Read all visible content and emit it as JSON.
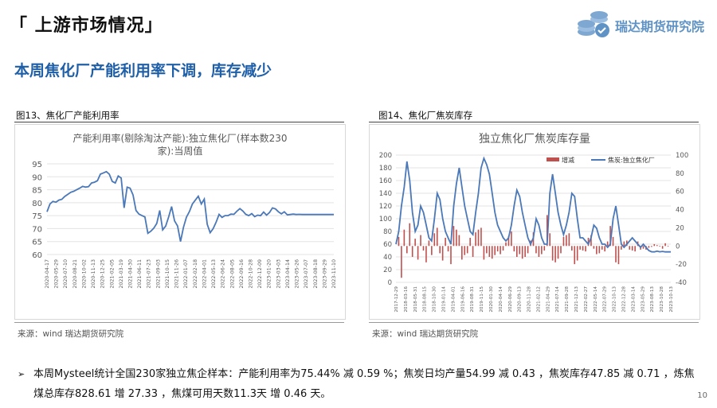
{
  "header": {
    "section_title": "「 上游市场情况」"
  },
  "brand": {
    "name": "瑞达期货研究院",
    "color": "#5f93c6"
  },
  "headline": "本周焦化厂产能利用率下调，库存减少",
  "colors": {
    "line": "#4a78b8",
    "bar": "#c0504d",
    "grid": "#e3e3e3",
    "headline": "#1f5fa8"
  },
  "figures": {
    "left": {
      "caption": "图13、焦化厂产能利用率",
      "source": "来源：wind   瑞达期货研究院"
    },
    "right": {
      "caption": "图14、焦化厂焦炭库存",
      "source": "来源：wind   瑞达期货研究院"
    }
  },
  "chart_data": [
    {
      "type": "line",
      "title_line1": "产能利用率(剔除淘汰产能):独立焦化厂(样本数230",
      "title_line2": "家):当周值",
      "ylim": [
        60,
        95
      ],
      "yticks": [
        60,
        65,
        70,
        75,
        80,
        85,
        90,
        95
      ],
      "xlim": [
        0,
        58
      ],
      "xtick_labels": [
        "2020-04-17",
        "2020-05-29",
        "2020-07-10",
        "2020-08-21",
        "2020-10-02",
        "2020-11-13",
        "2020-12-25",
        "2021-02-05",
        "2021-03-19",
        "2021-04-30",
        "2021-06-11",
        "2021-07-23",
        "2021-09-03",
        "2021-10-15",
        "2021-11-26",
        "2022-01-07",
        "2022-02-18",
        "2022-04-01",
        "2022-05-13",
        "2022-06-24",
        "2022-08-05",
        "2022-09-16",
        "2022-10-28",
        "2022-12-09",
        "2023-01-20",
        "2023-03-03",
        "2023-04-14",
        "2023-05-26",
        "2023-07-07",
        "2023-08-18",
        "2023-09-29",
        "2023-11-10"
      ],
      "series": [
        {
          "name": "独立焦化厂产能利用率",
          "x": [
            0,
            0.6,
            1.2,
            1.8,
            2.4,
            3.0,
            3.6,
            4.2,
            4.8,
            5.4,
            6.0,
            6.6,
            7.2,
            7.8,
            8.4,
            9.0,
            9.6,
            10.2,
            10.8,
            11.4,
            12.0,
            12.6,
            13.2,
            13.8,
            14.4,
            15.0,
            15.6,
            16.2,
            16.8,
            17.4,
            18.0,
            18.6,
            19.2,
            19.8,
            20.4,
            21.0,
            21.6,
            22.2,
            22.8,
            23.4,
            24.0,
            24.6,
            25.2,
            25.8,
            26.4,
            27.0,
            27.6,
            28.2,
            28.8,
            29.4,
            30.0,
            30.6,
            31.2,
            31.8,
            32.4,
            33.0,
            33.6,
            34.2,
            34.8,
            35.4,
            36.0,
            36.6,
            37.2,
            37.8,
            38.4,
            39.0,
            39.6,
            40.2,
            40.8,
            41.4,
            42.0,
            42.6,
            43.2,
            43.8,
            44.4,
            45.0,
            45.6,
            46.2,
            46.8,
            47.4,
            48.0,
            48.6,
            49.2,
            49.8,
            50.4,
            51.0,
            51.6,
            52.2,
            52.8,
            53.4,
            54.0,
            54.6,
            55.2,
            55.8,
            56.4,
            57.0,
            57.6,
            58.0
          ],
          "values": [
            76.5,
            79.5,
            80.5,
            80.2,
            81.0,
            81.3,
            82.4,
            83.2,
            84.0,
            84.4,
            85.0,
            85.6,
            86.3,
            86.0,
            86.2,
            87.6,
            87.9,
            88.5,
            91.0,
            91.5,
            92.0,
            91.0,
            88.2,
            87.6,
            90.3,
            89.5,
            78.0,
            86.0,
            85.6,
            83.0,
            77.0,
            75.6,
            75.0,
            74.5,
            68.2,
            69.0,
            70.2,
            72.0,
            77.0,
            69.5,
            71.0,
            74.5,
            78.5,
            73.0,
            71.0,
            65.0,
            70.5,
            74.4,
            76.6,
            79.5,
            81.0,
            82.5,
            79.5,
            81.4,
            71.7,
            68.4,
            70.0,
            72.5,
            75.5,
            74.3,
            75.0,
            75.0,
            75.6,
            75.5,
            76.7,
            77.7,
            76.8,
            75.5,
            75.0,
            75.8,
            74.6,
            75.2,
            75.0,
            76.4,
            75.2,
            76.2,
            78.0,
            77.6,
            76.5,
            75.7,
            76.5,
            75.3,
            75.44,
            75.6,
            75.44,
            75.5,
            75.44,
            75.44,
            75.44,
            75.44,
            75.44,
            75.44,
            75.44,
            75.44,
            75.44,
            75.44,
            75.44,
            75.44
          ]
        }
      ]
    },
    {
      "type": "bar+line",
      "title": "独立焦化厂焦炭库存量",
      "legend": [
        "增减",
        "焦炭:独立焦化厂"
      ],
      "left_ylim": [
        0,
        200
      ],
      "left_yticks": [
        0,
        20,
        40,
        60,
        80,
        100,
        120,
        140,
        160,
        180,
        200
      ],
      "right_ylim": [
        -40,
        100
      ],
      "right_yticks": [
        -40,
        -20,
        0,
        20,
        40,
        60,
        80,
        100
      ],
      "xlim": [
        0,
        100
      ],
      "xtick_labels": [
        "2017-12-29",
        "2018-03-16",
        "2018-05-31",
        "2018-08-15",
        "2018-10-30",
        "2019-01-14",
        "2019-04-01",
        "2019-06-16",
        "2019-08-31",
        "2019-11-15",
        "2020-01-30",
        "2020-04-14",
        "2020-06-29",
        "2020-09-13",
        "2020-11-28",
        "2021-02-12",
        "2021-04-29",
        "2021-07-14",
        "2021-09-28",
        "2021-12-13",
        "2022-02-27",
        "2022-05-14",
        "2022-07-29",
        "2022-10-13",
        "2022-12-28",
        "2023-03-14",
        "2023-05-29",
        "2023-08-13",
        "2023-10-28",
        "2023-10-13"
      ],
      "series": [
        {
          "name": "焦炭:独立焦化厂",
          "axis": "left",
          "x": [
            0,
            1,
            2,
            3,
            4,
            5,
            6,
            7,
            8,
            9,
            10,
            11,
            12,
            13,
            14,
            15,
            16,
            17,
            18,
            19,
            20,
            21,
            22,
            23,
            24,
            25,
            26,
            27,
            28,
            29,
            30,
            31,
            32,
            33,
            34,
            35,
            36,
            37,
            38,
            39,
            40,
            41,
            42,
            43,
            44,
            45,
            46,
            47,
            48,
            49,
            50,
            51,
            52,
            53,
            54,
            55,
            56,
            57,
            58,
            59,
            60,
            61,
            62,
            63,
            64,
            65,
            66,
            67,
            68,
            69,
            70,
            71,
            72,
            73,
            74,
            75,
            76,
            77,
            78,
            79,
            80,
            81,
            82,
            83,
            84,
            85,
            86,
            87,
            88,
            89,
            90,
            91,
            92,
            93,
            94,
            95,
            96,
            97,
            98,
            99,
            100
          ],
          "values": [
            60,
            80,
            120,
            150,
            190,
            160,
            110,
            80,
            90,
            120,
            110,
            90,
            70,
            65,
            100,
            140,
            130,
            100,
            80,
            70,
            60,
            120,
            155,
            180,
            150,
            120,
            100,
            80,
            75,
            110,
            140,
            180,
            195,
            185,
            170,
            140,
            110,
            90,
            80,
            70,
            65,
            70,
            90,
            120,
            145,
            135,
            110,
            90,
            70,
            60,
            70,
            100,
            90,
            70,
            60,
            60,
            140,
            170,
            140,
            110,
            90,
            75,
            90,
            110,
            140,
            135,
            100,
            70,
            70,
            65,
            60,
            70,
            90,
            85,
            70,
            60,
            60,
            55,
            60,
            100,
            120,
            90,
            60,
            55,
            60,
            65,
            70,
            65,
            60,
            55,
            60,
            55,
            50,
            48,
            47.85,
            49,
            48,
            48.6,
            47.85,
            47.85,
            47.85
          ]
        },
        {
          "name": "增减",
          "axis": "right",
          "x": [
            1,
            2,
            3,
            4,
            5,
            6,
            7,
            8,
            9,
            10,
            11,
            12,
            13,
            14,
            15,
            16,
            17,
            18,
            19,
            20,
            21,
            22,
            23,
            24,
            25,
            26,
            27,
            28,
            29,
            30,
            31,
            32,
            33,
            34,
            35,
            36,
            37,
            38,
            39,
            40,
            41,
            42,
            43,
            44,
            45,
            46,
            47,
            48,
            49,
            50,
            51,
            52,
            53,
            54,
            55,
            56,
            57,
            58,
            59,
            60,
            61,
            62,
            63,
            64,
            65,
            66,
            67,
            68,
            69,
            70,
            71,
            72,
            73,
            74,
            75,
            76,
            77,
            78,
            79,
            80,
            81,
            82,
            83,
            84,
            85,
            86,
            87,
            88,
            89,
            90,
            91,
            92,
            93,
            94,
            95,
            96,
            97,
            98,
            99
          ],
          "values": [
            10,
            -35,
            18,
            -8,
            25,
            -12,
            8,
            -15,
            12,
            -5,
            -18,
            6,
            -10,
            14,
            20,
            -8,
            -16,
            9,
            -6,
            -20,
            22,
            18,
            12,
            -15,
            -10,
            -8,
            9,
            -12,
            15,
            18,
            20,
            -15,
            -8,
            -12,
            -14,
            -10,
            -6,
            -9,
            -5,
            4,
            11,
            16,
            -6,
            -12,
            -9,
            -14,
            -12,
            -8,
            6,
            15,
            -8,
            -12,
            -9,
            -5,
            34,
            14,
            -16,
            -18,
            -14,
            -8,
            10,
            12,
            14,
            -5,
            -20,
            -16,
            -4,
            -5,
            -6,
            9,
            12,
            -3,
            -9,
            -8,
            -4,
            -6,
            5,
            22,
            10,
            -18,
            -20,
            -4,
            5,
            6,
            -4,
            -5,
            -6,
            5,
            -4,
            -3,
            -4,
            -2,
            -1,
            2,
            1,
            -0.71,
            -3,
            3,
            -0.71
          ]
        }
      ]
    }
  ],
  "summary": {
    "bullet": "➢",
    "text": "本周Mysteel统计全国230家独立焦企样本：产能利用率为75.44% 减 0.59 %；焦炭日均产量54.99 减 0.43 ，焦炭库存47.85 减 0.71 ，炼焦煤总库存828.61 增 27.33 ，焦煤可用天数11.3天 增 0.46 天。"
  },
  "page_number": "10"
}
